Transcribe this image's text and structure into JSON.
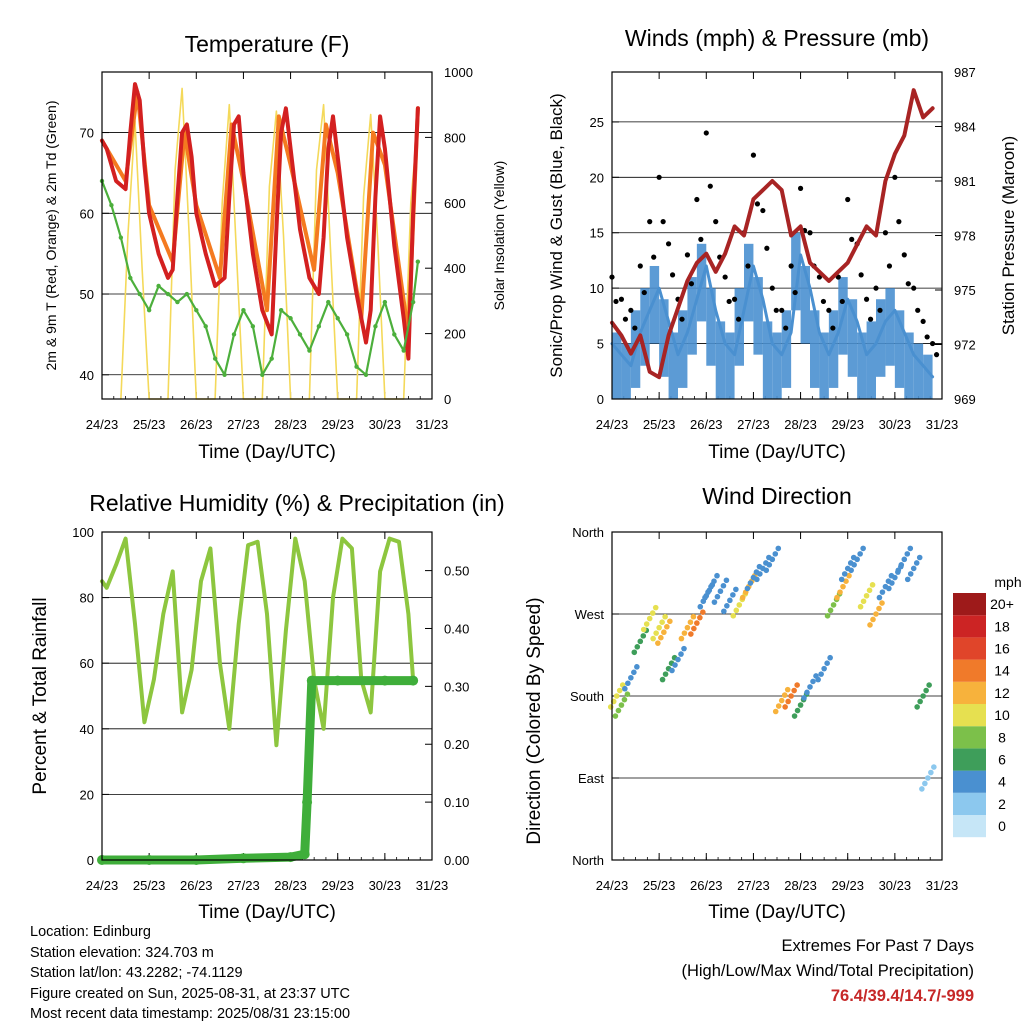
{
  "colors": {
    "temp_2m": "#d32020",
    "temp_9m": "#f47a20",
    "dewpoint": "#4caf3c",
    "insolation": "#f4d95a",
    "gust": "#000000",
    "wind": "#4a90d0",
    "pressure": "#a82424",
    "rh": "#8dc63f",
    "rain": "#3fae3a",
    "extremes": "#c62828"
  },
  "x_ticks": [
    "24/23",
    "25/23",
    "26/23",
    "27/23",
    "28/23",
    "29/23",
    "30/23",
    "31/23"
  ],
  "temperature": {
    "title": "Temperature (F)",
    "ylabel_left": "2m & 9m T (Red, Orange) & 2m Td (Green)",
    "ylabel_right": "Solar Insolation (Yellow)",
    "xlabel": "Time (Day/UTC)",
    "yticks_left": [
      "40",
      "50",
      "60",
      "70"
    ],
    "yticks_right": [
      "0",
      "200",
      "400",
      "600",
      "800",
      "1000"
    ]
  },
  "winds": {
    "title": "Winds (mph) & Pressure (mb)",
    "ylabel_left": "Sonic/Prop Wind & Gust (Blue, Black)",
    "ylabel_right": "Station Pressure (Maroon)",
    "xlabel": "Time (Day/UTC)",
    "yticks_left": [
      "0",
      "5",
      "10",
      "15",
      "20",
      "25"
    ],
    "yticks_right": [
      "969",
      "972",
      "975",
      "978",
      "981",
      "984",
      "987"
    ]
  },
  "humidity": {
    "title": "Relative Humidity (%) & Precipitation (in)",
    "ylabel_left": "Percent & Total Rainfall",
    "xlabel": "Time (Day/UTC)",
    "yticks_left": [
      "0",
      "20",
      "40",
      "60",
      "80",
      "100"
    ],
    "yticks_right": [
      "0.00",
      "0.10",
      "0.20",
      "0.30",
      "0.40",
      "0.50"
    ]
  },
  "direction": {
    "title": "Wind Direction",
    "ylabel_left": "Direction (Colored By Speed)",
    "xlabel": "Time (Day/UTC)",
    "yticks_left": [
      "North",
      "East",
      "South",
      "West",
      "North"
    ],
    "legend_title": "mph",
    "legend_labels": [
      "0",
      "2",
      "4",
      "6",
      "8",
      "10",
      "12",
      "14",
      "16",
      "18",
      "20+"
    ],
    "legend_colors": [
      "#c6e6f7",
      "#8cc8ee",
      "#4a90d0",
      "#3e9e5a",
      "#7cc04a",
      "#e6e050",
      "#f7b23c",
      "#f07a2a",
      "#e0452a",
      "#cc2424",
      "#9e1a1a"
    ]
  },
  "footer": {
    "location": "Location: Edinburg",
    "elevation": "Station elevation: 324.703 m",
    "latlon": "Station lat/lon: 43.2282; -74.1129",
    "created": "Figure created on Sun, 2025-08-31, at 23:37 UTC",
    "recent": "Most recent data timestamp: 2025/08/31 23:15:00"
  },
  "extremes": {
    "line1": "Extremes For Past 7 Days",
    "line2": "(High/Low/Max Wind/Total Precipitation)",
    "values": "76.4/39.4/14.7/-999"
  },
  "chart_data": [
    {
      "type": "line",
      "title": "Temperature (F)",
      "xlabel": "Time (Day/UTC)",
      "ylabel": "2m & 9m T (Red, Orange) & 2m Td (Green)",
      "ylim": [
        37,
        77.5
      ],
      "y2label": "Solar Insolation (Yellow)",
      "y2lim": [
        0,
        1000
      ],
      "x_unit": "days since 24/23",
      "series": [
        {
          "name": "2m T",
          "x": [
            0,
            0.1,
            0.3,
            0.5,
            0.6,
            0.7,
            0.8,
            0.9,
            1.0,
            1.2,
            1.4,
            1.5,
            1.6,
            1.7,
            1.8,
            1.9,
            2.0,
            2.2,
            2.4,
            2.6,
            2.7,
            2.8,
            2.9,
            3.0,
            3.2,
            3.4,
            3.6,
            3.7,
            3.8,
            3.9,
            4.0,
            4.2,
            4.4,
            4.6,
            4.7,
            4.8,
            4.9,
            5.0,
            5.2,
            5.4,
            5.6,
            5.7,
            5.8,
            5.9,
            6.0,
            6.2,
            6.4,
            6.5,
            6.6,
            6.7
          ],
          "values": [
            69,
            68,
            64,
            63,
            70,
            76,
            74,
            66,
            60,
            55,
            52,
            53,
            62,
            70,
            71,
            67,
            60,
            55,
            51,
            52,
            62,
            71,
            72,
            65,
            55,
            48,
            45,
            58,
            70,
            73,
            68,
            58,
            52,
            50,
            57,
            68,
            72,
            67,
            57,
            50,
            44,
            48,
            62,
            72,
            68,
            56,
            47,
            42,
            60,
            73
          ]
        },
        {
          "name": "9m T",
          "x": [
            0,
            0.5,
            0.75,
            1.0,
            1.5,
            1.75,
            2.0,
            2.5,
            2.75,
            3.0,
            3.5,
            3.75,
            4.0,
            4.5,
            4.75,
            5.0,
            5.5,
            5.75,
            6.0,
            6.5,
            6.7
          ],
          "values": [
            69,
            64,
            75,
            61,
            54,
            70,
            61,
            52,
            71,
            64,
            48,
            72,
            66,
            53,
            71,
            65,
            47,
            70,
            66,
            45,
            73
          ]
        },
        {
          "name": "2m Td",
          "x": [
            0,
            0.2,
            0.4,
            0.6,
            0.8,
            1.0,
            1.2,
            1.4,
            1.6,
            1.8,
            2.0,
            2.2,
            2.4,
            2.6,
            2.8,
            3.0,
            3.2,
            3.4,
            3.6,
            3.8,
            4.0,
            4.2,
            4.4,
            4.6,
            4.8,
            5.0,
            5.2,
            5.4,
            5.6,
            5.8,
            6.0,
            6.2,
            6.4,
            6.6,
            6.7
          ],
          "values": [
            64,
            61,
            57,
            52,
            50,
            48,
            51,
            50,
            49,
            50,
            48,
            46,
            42,
            40,
            45,
            48,
            46,
            40,
            42,
            48,
            47,
            45,
            43,
            46,
            49,
            47,
            45,
            41,
            40,
            46,
            49,
            45,
            43,
            49,
            54
          ]
        },
        {
          "name": "Solar Insolation",
          "axis": "y2",
          "x": [
            0.4,
            0.55,
            0.7,
            0.85,
            1.0,
            1.4,
            1.55,
            1.7,
            1.85,
            2.0,
            2.4,
            2.55,
            2.7,
            2.85,
            3.0,
            3.4,
            3.55,
            3.7,
            3.85,
            4.0,
            4.4,
            4.55,
            4.7,
            4.85,
            5.0,
            5.4,
            5.55,
            5.7,
            5.85,
            6.0,
            6.4,
            6.55,
            6.7
          ],
          "values": [
            0,
            500,
            850,
            400,
            0,
            0,
            700,
            950,
            500,
            0,
            0,
            600,
            900,
            450,
            0,
            0,
            650,
            880,
            500,
            0,
            0,
            700,
            900,
            450,
            0,
            0,
            620,
            870,
            480,
            0,
            0,
            600,
            850
          ]
        }
      ]
    },
    {
      "type": "line",
      "title": "Winds (mph) & Pressure (mb)",
      "xlabel": "Time (Day/UTC)",
      "ylabel": "Sonic/Prop Wind & Gust (Blue, Black)",
      "ylim": [
        0,
        29.5
      ],
      "y2label": "Station Pressure (Maroon)",
      "y2lim": [
        969,
        987
      ],
      "x_unit": "days since 24/23",
      "series": [
        {
          "name": "Wind",
          "x": [
            0,
            0.2,
            0.4,
            0.6,
            0.8,
            1.0,
            1.2,
            1.4,
            1.6,
            1.8,
            2.0,
            2.2,
            2.4,
            2.6,
            2.8,
            3.0,
            3.2,
            3.4,
            3.6,
            3.8,
            4.0,
            4.2,
            4.4,
            4.6,
            4.8,
            5.0,
            5.2,
            5.4,
            5.6,
            5.8,
            6.0,
            6.2,
            6.4,
            6.6,
            6.8
          ],
          "values": [
            5,
            4,
            3,
            6,
            8,
            10,
            7,
            4,
            6,
            9,
            12,
            8,
            5,
            4,
            8,
            12,
            9,
            5,
            4,
            6,
            13,
            10,
            6,
            4,
            6,
            9,
            7,
            4,
            5,
            7,
            8,
            6,
            4,
            3,
            2
          ]
        },
        {
          "name": "Gust",
          "x": [
            0,
            0.2,
            0.4,
            0.6,
            0.8,
            1.0,
            1.2,
            1.4,
            1.6,
            1.8,
            2.0,
            2.2,
            2.4,
            2.6,
            2.8,
            3.0,
            3.2,
            3.4,
            3.6,
            3.8,
            4.0,
            4.2,
            4.4,
            4.6,
            4.8,
            5.0,
            5.2,
            5.4,
            5.6,
            5.8,
            6.0,
            6.2,
            6.4,
            6.6,
            6.8
          ],
          "values": [
            11,
            9,
            8,
            12,
            16,
            20,
            14,
            9,
            13,
            18,
            24,
            16,
            11,
            9,
            15,
            22,
            17,
            10,
            8,
            12,
            19,
            15,
            11,
            8,
            11,
            18,
            14,
            9,
            10,
            15,
            20,
            13,
            10,
            7,
            5
          ]
        },
        {
          "name": "Pressure",
          "axis": "y2",
          "x": [
            0,
            0.2,
            0.4,
            0.6,
            0.8,
            1.0,
            1.2,
            1.4,
            1.6,
            1.8,
            2.0,
            2.2,
            2.4,
            2.6,
            2.8,
            3.0,
            3.2,
            3.4,
            3.6,
            3.8,
            4.0,
            4.2,
            4.4,
            4.6,
            4.8,
            5.0,
            5.2,
            5.4,
            5.6,
            5.8,
            6.0,
            6.2,
            6.4,
            6.6,
            6.8
          ],
          "values": [
            973.2,
            972.5,
            971.5,
            972.5,
            970.5,
            970.2,
            972.5,
            974.0,
            975.5,
            976.5,
            977.0,
            976.0,
            977.0,
            978.5,
            978.0,
            980.0,
            980.5,
            981.0,
            980.5,
            978.0,
            978.5,
            976.5,
            976.0,
            975.5,
            976.0,
            976.5,
            977.5,
            978.5,
            978.0,
            981.0,
            982.5,
            983.5,
            986.0,
            984.5,
            985.0
          ]
        }
      ]
    },
    {
      "type": "line",
      "title": "Relative Humidity (%) & Precipitation (in)",
      "xlabel": "Time (Day/UTC)",
      "ylabel": "Percent & Total Rainfall",
      "ylim": [
        0,
        100
      ],
      "y2lim": [
        0,
        0.5667
      ],
      "x_unit": "days since 24/23",
      "series": [
        {
          "name": "RH",
          "x": [
            0,
            0.1,
            0.3,
            0.5,
            0.7,
            0.9,
            1.1,
            1.3,
            1.5,
            1.7,
            1.9,
            2.1,
            2.3,
            2.5,
            2.7,
            2.9,
            3.1,
            3.3,
            3.5,
            3.7,
            3.9,
            4.1,
            4.3,
            4.5,
            4.7,
            4.9,
            5.1,
            5.3,
            5.5,
            5.7,
            5.9,
            6.1,
            6.3,
            6.5,
            6.6
          ],
          "values": [
            85,
            83,
            90,
            98,
            72,
            42,
            55,
            75,
            88,
            45,
            58,
            85,
            95,
            60,
            40,
            72,
            96,
            97,
            75,
            35,
            70,
            98,
            85,
            55,
            40,
            80,
            98,
            95,
            55,
            45,
            88,
            98,
            97,
            75,
            55
          ]
        },
        {
          "name": "Total Rainfall",
          "axis": "y2",
          "x": [
            0,
            1.0,
            2.0,
            3.0,
            4.0,
            4.3,
            4.35,
            4.45,
            5.0,
            6.0,
            6.6
          ],
          "values": [
            0.0,
            0.0,
            0.0,
            0.003,
            0.005,
            0.01,
            0.1,
            0.31,
            0.31,
            0.31,
            0.31
          ]
        }
      ]
    },
    {
      "type": "scatter",
      "title": "Wind Direction",
      "xlabel": "Time (Day/UTC)",
      "ylabel": "Direction (Colored By Speed)",
      "ylim": [
        0,
        360
      ],
      "x_unit": "days since 24/23",
      "series": [
        {
          "name": "Direction",
          "x": [
            0.1,
            0.2,
            0.4,
            0.6,
            0.8,
            1.0,
            1.1,
            1.2,
            1.4,
            1.6,
            1.8,
            2.0,
            2.1,
            2.3,
            2.5,
            2.7,
            2.9,
            3.0,
            3.2,
            3.4,
            3.6,
            3.8,
            4.0,
            4.2,
            4.5,
            4.7,
            4.9,
            5.0,
            5.2,
            5.4,
            5.6,
            5.8,
            6.0,
            6.2,
            6.4,
            6.6,
            6.7
          ],
          "values": [
            180,
            170,
            200,
            240,
            265,
            255,
            250,
            210,
            220,
            255,
            260,
            290,
            300,
            295,
            285,
            280,
            300,
            310,
            320,
            330,
            175,
            180,
            170,
            190,
            210,
            280,
            300,
            320,
            330,
            290,
            270,
            300,
            310,
            330,
            320,
            180,
            90
          ],
          "speeds": [
            10,
            8,
            4,
            6,
            9,
            10,
            11,
            6,
            4,
            12,
            14,
            4,
            3,
            4,
            3,
            9,
            11,
            4,
            3,
            4,
            12,
            13,
            5,
            3,
            4,
            8,
            11,
            4,
            3,
            10,
            12,
            4,
            3,
            4,
            3,
            6,
            2
          ]
        }
      ]
    }
  ]
}
